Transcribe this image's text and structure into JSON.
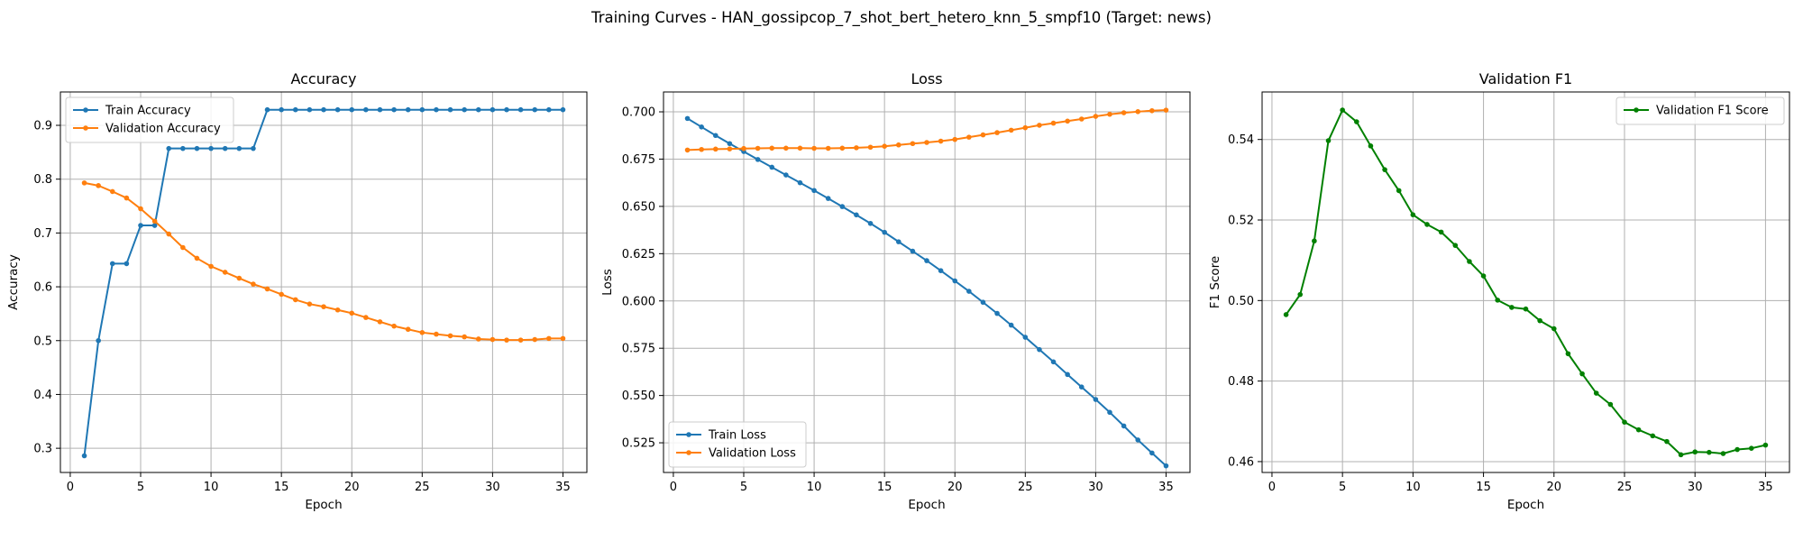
{
  "figure": {
    "suptitle": "Training Curves - HAN_gossipcop_7_shot_bert_hetero_knn_5_smpf10 (Target: news)"
  },
  "colors": {
    "train": "#1f77b4",
    "validation": "#ff7f0e",
    "f1": "#008000",
    "grid": "#b0b0b0"
  },
  "chart_data": [
    {
      "type": "line",
      "title": "Accuracy",
      "xlabel": "Epoch",
      "ylabel": "Accuracy",
      "xlim": [
        -0.7,
        36.7
      ],
      "ylim": [
        0.255,
        0.962
      ],
      "xticks": [
        0,
        5,
        10,
        15,
        20,
        25,
        30,
        35
      ],
      "yticks": [
        0.3,
        0.4,
        0.5,
        0.6,
        0.7,
        0.8,
        0.9
      ],
      "yticklabels": [
        "0.3",
        "0.4",
        "0.5",
        "0.6",
        "0.7",
        "0.8",
        "0.9"
      ],
      "grid": true,
      "legend_position": "upper-left",
      "x": [
        1,
        2,
        3,
        4,
        5,
        6,
        7,
        8,
        9,
        10,
        11,
        12,
        13,
        14,
        15,
        16,
        17,
        18,
        19,
        20,
        21,
        22,
        23,
        24,
        25,
        26,
        27,
        28,
        29,
        30,
        31,
        32,
        33,
        34,
        35
      ],
      "series": [
        {
          "name": "Train Accuracy",
          "color": "#1f77b4",
          "values": [
            0.286,
            0.5,
            0.643,
            0.643,
            0.714,
            0.714,
            0.857,
            0.857,
            0.857,
            0.857,
            0.857,
            0.857,
            0.857,
            0.929,
            0.929,
            0.929,
            0.929,
            0.929,
            0.929,
            0.929,
            0.929,
            0.929,
            0.929,
            0.929,
            0.929,
            0.929,
            0.929,
            0.929,
            0.929,
            0.929,
            0.929,
            0.929,
            0.929,
            0.929,
            0.929
          ]
        },
        {
          "name": "Validation Accuracy",
          "color": "#ff7f0e",
          "values": [
            0.793,
            0.788,
            0.777,
            0.765,
            0.745,
            0.722,
            0.698,
            0.673,
            0.653,
            0.638,
            0.627,
            0.616,
            0.605,
            0.596,
            0.586,
            0.576,
            0.568,
            0.563,
            0.557,
            0.551,
            0.543,
            0.535,
            0.527,
            0.521,
            0.515,
            0.512,
            0.509,
            0.507,
            0.503,
            0.502,
            0.501,
            0.501,
            0.502,
            0.504,
            0.504
          ]
        }
      ]
    },
    {
      "type": "line",
      "title": "Loss",
      "xlabel": "Epoch",
      "ylabel": "Loss",
      "xlim": [
        -0.7,
        36.7
      ],
      "ylim": [
        0.5093,
        0.7105
      ],
      "xticks": [
        0,
        5,
        10,
        15,
        20,
        25,
        30,
        35
      ],
      "yticks": [
        0.525,
        0.55,
        0.575,
        0.6,
        0.625,
        0.65,
        0.675,
        0.7
      ],
      "yticklabels": [
        "0.525",
        "0.550",
        "0.575",
        "0.600",
        "0.625",
        "0.650",
        "0.675",
        "0.700"
      ],
      "grid": true,
      "legend_position": "lower-left",
      "x": [
        1,
        2,
        3,
        4,
        5,
        6,
        7,
        8,
        9,
        10,
        11,
        12,
        13,
        14,
        15,
        16,
        17,
        18,
        19,
        20,
        21,
        22,
        23,
        24,
        25,
        26,
        27,
        28,
        29,
        30,
        31,
        32,
        33,
        34,
        35
      ],
      "series": [
        {
          "name": "Train Loss",
          "color": "#1f77b4",
          "values": [
            0.6965,
            0.692,
            0.6875,
            0.6832,
            0.679,
            0.6748,
            0.6707,
            0.6666,
            0.6625,
            0.6584,
            0.6542,
            0.6499,
            0.6455,
            0.641,
            0.6363,
            0.6313,
            0.6263,
            0.6213,
            0.616,
            0.6106,
            0.6051,
            0.5993,
            0.5934,
            0.5872,
            0.5808,
            0.5743,
            0.5678,
            0.5611,
            0.5545,
            0.5479,
            0.5411,
            0.5339,
            0.5265,
            0.5196,
            0.5128
          ]
        },
        {
          "name": "Validation Loss",
          "color": "#ff7f0e",
          "values": [
            0.6798,
            0.6801,
            0.6803,
            0.6804,
            0.6806,
            0.6807,
            0.6808,
            0.6808,
            0.6808,
            0.6807,
            0.6807,
            0.6808,
            0.681,
            0.6813,
            0.6818,
            0.6825,
            0.6832,
            0.6838,
            0.6845,
            0.6854,
            0.6866,
            0.6878,
            0.689,
            0.6903,
            0.6916,
            0.6929,
            0.694,
            0.6951,
            0.6962,
            0.6976,
            0.6987,
            0.6995,
            0.7001,
            0.7006,
            0.7009
          ]
        }
      ]
    },
    {
      "type": "line",
      "title": "Validation F1",
      "xlabel": "Epoch",
      "ylabel": "F1 Score",
      "xlim": [
        -0.7,
        36.7
      ],
      "ylim": [
        0.4573,
        0.5518
      ],
      "xticks": [
        0,
        5,
        10,
        15,
        20,
        25,
        30,
        35
      ],
      "yticks": [
        0.46,
        0.48,
        0.5,
        0.52,
        0.54
      ],
      "yticklabels": [
        "0.46",
        "0.48",
        "0.50",
        "0.52",
        "0.54"
      ],
      "grid": true,
      "legend_position": "upper-right",
      "x": [
        1,
        2,
        3,
        4,
        5,
        6,
        7,
        8,
        9,
        10,
        11,
        12,
        13,
        14,
        15,
        16,
        17,
        18,
        19,
        20,
        21,
        22,
        23,
        24,
        25,
        26,
        27,
        28,
        29,
        30,
        31,
        32,
        33,
        34,
        35
      ],
      "series": [
        {
          "name": "Validation F1 Score",
          "color": "#008000",
          "values": [
            0.4965,
            0.5015,
            0.5148,
            0.5397,
            0.5473,
            0.5444,
            0.5384,
            0.5325,
            0.5273,
            0.5213,
            0.5189,
            0.517,
            0.5137,
            0.5097,
            0.5061,
            0.5001,
            0.4983,
            0.4979,
            0.495,
            0.493,
            0.4868,
            0.4818,
            0.477,
            0.4742,
            0.4698,
            0.4679,
            0.4664,
            0.465,
            0.4617,
            0.4624,
            0.4623,
            0.462,
            0.463,
            0.4633,
            0.4641
          ]
        }
      ]
    }
  ]
}
